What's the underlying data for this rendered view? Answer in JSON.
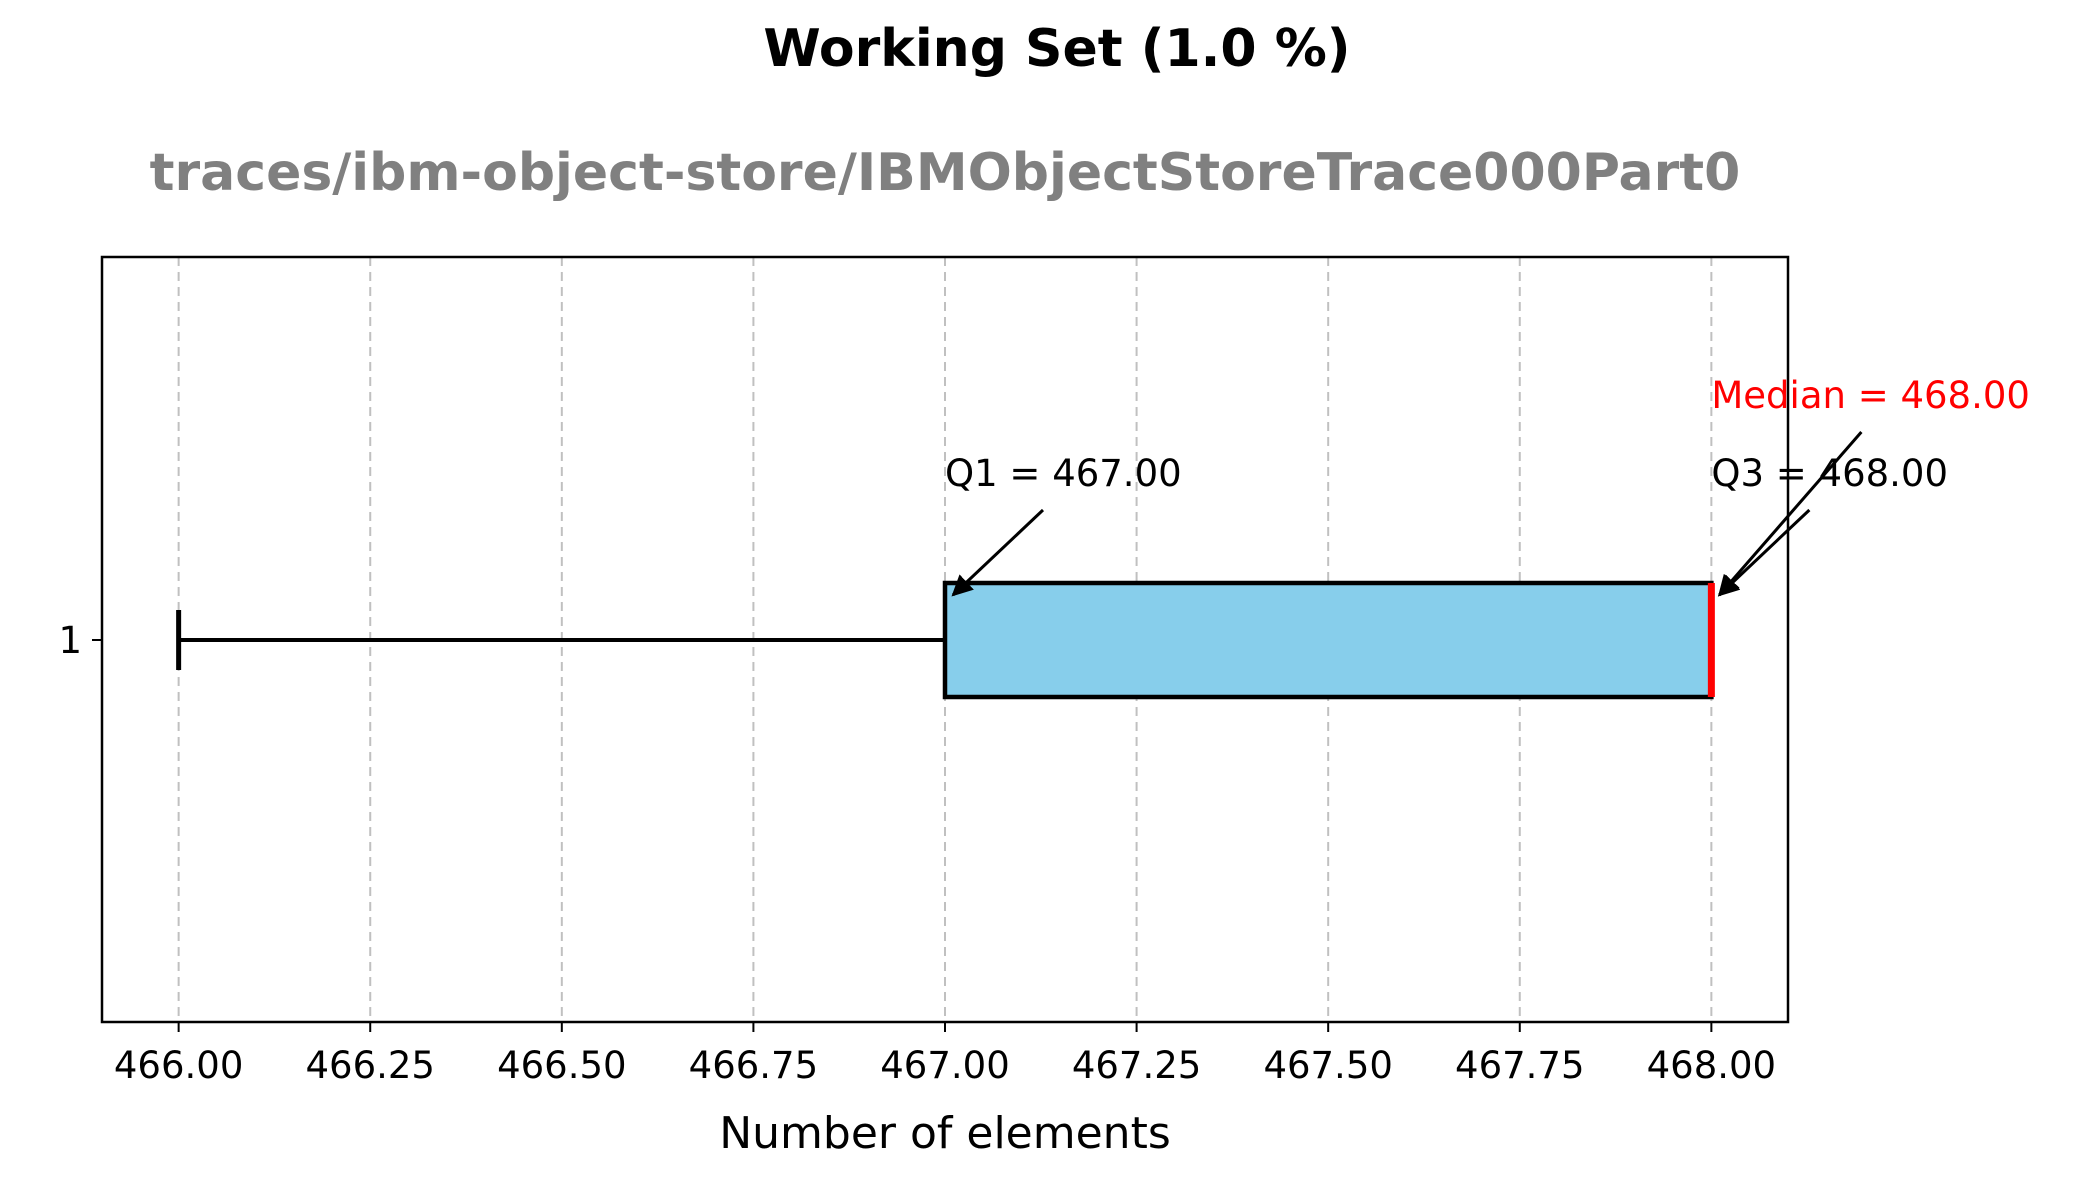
{
  "chart_data": {
    "type": "boxplot",
    "title": "Working Set (1.0 %)",
    "subtitle": "traces/ibm-object-store/IBMObjectStoreTrace000Part0",
    "xlabel": "Number of elements",
    "ylabel": "",
    "orientation": "horizontal",
    "xlim": [
      465.9,
      468.1
    ],
    "x_ticks": [
      466.0,
      466.25,
      466.5,
      466.75,
      467.0,
      467.25,
      467.5,
      467.75,
      468.0
    ],
    "x_tick_labels": [
      "466.00",
      "466.25",
      "466.50",
      "466.75",
      "467.00",
      "467.25",
      "467.50",
      "467.75",
      "468.00"
    ],
    "y_tick_labels": [
      "1"
    ],
    "grid": "x-axis dashed",
    "boxes": [
      {
        "label": "1",
        "whisker_low": 466.0,
        "q1": 467.0,
        "median": 468.0,
        "q3": 468.0,
        "whisker_high": 468.0
      }
    ],
    "annotations": {
      "q1": "Q1 = 467.00",
      "median": "Median = 468.00",
      "q3": "Q3 = 468.00"
    },
    "colors": {
      "box_fill": "#87CEEB",
      "box_edge": "#000000",
      "median_line": "#FF0000",
      "median_text": "#FF0000",
      "subtitle": "#808080"
    }
  }
}
